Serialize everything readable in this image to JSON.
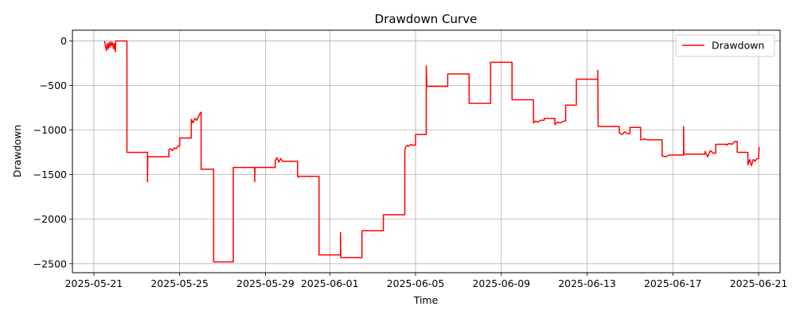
{
  "chart_data": {
    "type": "line",
    "title": "Drawdown Curve",
    "xlabel": "Time",
    "ylabel": "Drawdown",
    "legend_position": "top-right",
    "grid": true,
    "xlim": [
      "2025-05-20",
      "2025-06-22"
    ],
    "ylim": [
      -2600,
      120
    ],
    "x_ticks": [
      "2025-05-21",
      "2025-05-25",
      "2025-05-29",
      "2025-06-01",
      "2025-06-05",
      "2025-06-09",
      "2025-06-13",
      "2025-06-17",
      "2025-06-21"
    ],
    "y_ticks": [
      0,
      -500,
      -1000,
      -1500,
      -2000,
      -2500
    ],
    "series": [
      {
        "name": "Drawdown",
        "color": "#ff0000",
        "x": [
          "2025-05-21T12:00",
          "2025-05-21T13:00",
          "2025-05-21T14:00",
          "2025-05-21T15:00",
          "2025-05-21T16:00",
          "2025-05-21T17:00",
          "2025-05-21T18:00",
          "2025-05-21T19:00",
          "2025-05-21T20:00",
          "2025-05-21T21:00",
          "2025-05-21T22:00",
          "2025-05-21T23:00",
          "2025-05-22T00:00",
          "2025-05-22T00:30",
          "2025-05-22T13:00",
          "2025-05-22T13:01",
          "2025-05-23T12:00",
          "2025-05-23T12:01",
          "2025-05-23T12:20",
          "2025-05-23T12:40",
          "2025-05-24T12:00",
          "2025-05-24T12:01",
          "2025-05-24T14:00",
          "2025-05-24T16:00",
          "2025-05-24T18:00",
          "2025-05-24T20:00",
          "2025-05-24T22:00",
          "2025-05-25T00:00",
          "2025-05-25T00:01",
          "2025-05-25T13:00",
          "2025-05-25T13:01",
          "2025-05-25T15:00",
          "2025-05-25T17:00",
          "2025-05-25T19:00",
          "2025-05-25T21:00",
          "2025-05-25T23:00",
          "2025-05-26T00:00",
          "2025-05-26T00:01",
          "2025-05-26T14:00",
          "2025-05-26T14:01",
          "2025-05-27T12:00",
          "2025-05-27T12:01",
          "2025-05-28T12:00",
          "2025-05-28T12:01",
          "2025-05-28T12:20",
          "2025-05-28T12:40",
          "2025-05-28T13:00",
          "2025-05-29T11:00",
          "2025-05-29T11:01",
          "2025-05-29T13:00",
          "2025-05-29T15:00",
          "2025-05-29T17:00",
          "2025-05-29T19:00",
          "2025-05-30T12:00",
          "2025-05-30T12:01",
          "2025-05-30T12:20",
          "2025-05-30T12:40",
          "2025-05-30T13:00",
          "2025-05-31T12:00",
          "2025-05-31T12:01",
          "2025-06-01T12:00",
          "2025-06-01T12:01",
          "2025-06-01T12:20",
          "2025-06-01T12:40",
          "2025-06-01T13:00",
          "2025-06-02T12:00",
          "2025-06-02T12:01",
          "2025-06-03T12:00",
          "2025-06-03T12:01",
          "2025-06-04T12:00",
          "2025-06-04T12:01",
          "2025-06-04T13:00",
          "2025-06-04T15:00",
          "2025-06-04T17:00",
          "2025-06-04T19:00",
          "2025-06-04T21:00",
          "2025-06-05T00:00",
          "2025-06-05T00:01",
          "2025-06-05T12:00",
          "2025-06-05T12:01",
          "2025-06-05T12:40",
          "2025-06-05T13:20",
          "2025-06-06T12:00",
          "2025-06-06T12:01",
          "2025-06-07T12:00",
          "2025-06-07T12:01",
          "2025-06-08T12:00",
          "2025-06-08T12:01",
          "2025-06-09T12:00",
          "2025-06-09T12:01",
          "2025-06-10T12:00",
          "2025-06-10T12:01",
          "2025-06-10T14:00",
          "2025-06-10T17:00",
          "2025-06-10T20:00",
          "2025-06-11T00:00",
          "2025-06-11T00:01",
          "2025-06-11T12:00",
          "2025-06-11T12:01",
          "2025-06-11T15:00",
          "2025-06-11T18:00",
          "2025-06-11T22:00",
          "2025-06-12T00:00",
          "2025-06-12T00:01",
          "2025-06-12T12:00",
          "2025-06-12T12:01",
          "2025-06-13T12:00",
          "2025-06-13T12:01",
          "2025-06-13T12:20",
          "2025-06-13T12:40",
          "2025-06-14T12:00",
          "2025-06-14T12:01",
          "2025-06-14T15:00",
          "2025-06-14T18:00",
          "2025-06-14T21:00",
          "2025-06-15T00:00",
          "2025-06-15T00:01",
          "2025-06-15T12:00",
          "2025-06-15T12:01",
          "2025-06-15T16:00",
          "2025-06-15T20:00",
          "2025-06-16T12:00",
          "2025-06-16T12:01",
          "2025-06-16T16:00",
          "2025-06-16T20:00",
          "2025-06-17T12:00",
          "2025-06-17T12:01",
          "2025-06-17T12:20",
          "2025-06-17T12:40",
          "2025-06-18T12:00",
          "2025-06-18T12:01",
          "2025-06-18T15:00",
          "2025-06-18T18:00",
          "2025-06-18T21:00",
          "2025-06-19T00:00",
          "2025-06-19T00:01",
          "2025-06-19T12:00",
          "2025-06-19T12:01",
          "2025-06-19T15:00",
          "2025-06-19T18:00",
          "2025-06-19T21:00",
          "2025-06-20T00:00",
          "2025-06-20T00:01",
          "2025-06-20T12:00",
          "2025-06-20T12:01",
          "2025-06-20T14:00",
          "2025-06-20T16:00",
          "2025-06-20T18:00",
          "2025-06-20T20:00",
          "2025-06-20T22:00",
          "2025-06-21T00:00",
          "2025-06-21T00:30"
        ],
        "y": [
          0,
          -60,
          -110,
          -30,
          -90,
          -20,
          -70,
          -10,
          -50,
          -20,
          -90,
          -30,
          -120,
          0,
          0,
          -1250,
          -1250,
          -1580,
          -1290,
          -1300,
          -1300,
          -1220,
          -1210,
          -1230,
          -1200,
          -1210,
          -1180,
          -1180,
          -1090,
          -1090,
          -880,
          -920,
          -870,
          -890,
          -850,
          -810,
          -800,
          -1440,
          -1440,
          -2480,
          -2480,
          -1420,
          -1420,
          -1580,
          -1420,
          -1420,
          -1420,
          -1420,
          -1340,
          -1310,
          -1360,
          -1320,
          -1350,
          -1350,
          -1520,
          -1520,
          -1530,
          -1520,
          -1520,
          -2400,
          -2400,
          -2150,
          -2430,
          -2430,
          -2430,
          -2430,
          -2130,
          -2130,
          -1950,
          -1950,
          -1220,
          -1190,
          -1170,
          -1180,
          -1160,
          -1170,
          -1170,
          -1050,
          -1050,
          -280,
          -510,
          -510,
          -510,
          -370,
          -370,
          -700,
          -700,
          -240,
          -240,
          -660,
          -660,
          -920,
          -900,
          -910,
          -890,
          -890,
          -870,
          -870,
          -940,
          -910,
          -920,
          -900,
          -900,
          -720,
          -720,
          -430,
          -430,
          -330,
          -960,
          -960,
          -960,
          -1030,
          -1050,
          -1020,
          -1040,
          -1040,
          -970,
          -970,
          -1110,
          -1100,
          -1110,
          -1110,
          -1290,
          -1300,
          -1280,
          -1280,
          -960,
          -1270,
          -1270,
          -1270,
          -1240,
          -1300,
          -1230,
          -1260,
          -1260,
          -1160,
          -1160,
          -1170,
          -1150,
          -1160,
          -1130,
          -1130,
          -1250,
          -1250,
          -1390,
          -1330,
          -1400,
          -1330,
          -1350,
          -1320,
          -1320,
          -1190
        ]
      }
    ]
  }
}
